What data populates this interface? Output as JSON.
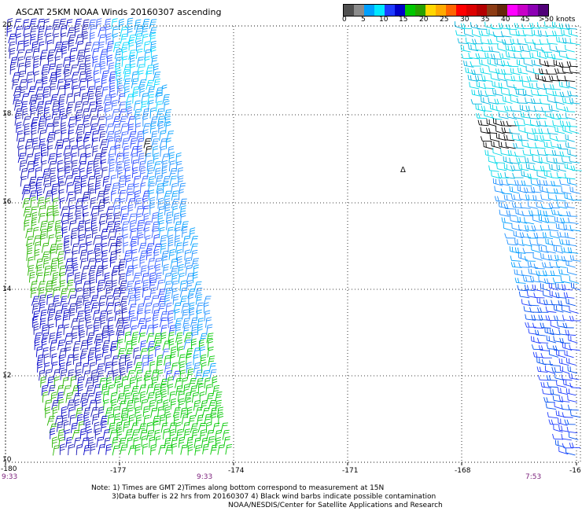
{
  "title": "ASCAT 25KM NOAA Winds 20160307 ascending",
  "legend": {
    "colors": [
      "#505050",
      "#8c8c8c",
      "#00a0ff",
      "#00e8ff",
      "#1e3cff",
      "#0000c8",
      "#00c800",
      "#28a000",
      "#ffd700",
      "#ffaa00",
      "#ff6400",
      "#ff0000",
      "#dc0000",
      "#b40000",
      "#8c3c14",
      "#64280a",
      "#ff00ff",
      "#c800c8",
      "#8c00b4",
      "#500078"
    ],
    "labels": [
      "0",
      "5",
      "10",
      "15",
      "20",
      "25",
      "30",
      "35",
      "40",
      "45",
      ">50 knots"
    ]
  },
  "axes": {
    "lon_labels": [
      "-180",
      "-177",
      "-174",
      "-171",
      "-168",
      "-16"
    ],
    "lat_labels": [
      "20",
      "18",
      "16",
      "14",
      "12",
      "10"
    ]
  },
  "times": [
    "9:33",
    "9:33",
    "7:53"
  ],
  "island_marker": "Δ",
  "notes": [
    "Note: 1) Times are GMT 2)Times along bottom correspond to measurement at 15N",
    "3)Data buffer is 22 hrs from 20160307 4) Black wind barbs indicate possible contamination",
    "NOAA/NESDIS/Center for Satellite Applications and Research"
  ]
}
